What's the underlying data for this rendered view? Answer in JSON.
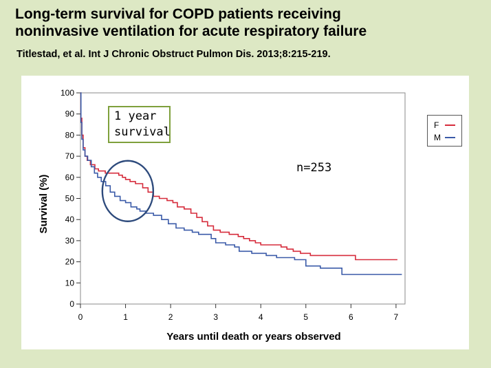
{
  "header": {
    "title_line1": "Long-term survival for COPD patients receiving",
    "title_line2": "noninvasive ventilation for acute respiratory failure",
    "citation": "Titlestad, et al. Int J Chronic Obstruct Pulmon Dis. 2013;8:215-219."
  },
  "chart_data": {
    "type": "line",
    "title": "",
    "xlabel": "Years until death or years observed",
    "ylabel": "Survival (%)",
    "xlim": [
      0,
      7.2
    ],
    "ylim": [
      0,
      100
    ],
    "xticks": [
      0,
      1,
      2,
      3,
      4,
      5,
      6,
      7
    ],
    "yticks": [
      0,
      10,
      20,
      30,
      40,
      50,
      60,
      70,
      80,
      90,
      100
    ],
    "grid": false,
    "legend_position": "top-right",
    "series": [
      {
        "name": "F",
        "color": "#d62b3b",
        "step": true,
        "points": [
          [
            0,
            100
          ],
          [
            0.01,
            88
          ],
          [
            0.03,
            80
          ],
          [
            0.06,
            74
          ],
          [
            0.1,
            70
          ],
          [
            0.15,
            68
          ],
          [
            0.22,
            66
          ],
          [
            0.32,
            64
          ],
          [
            0.4,
            63
          ],
          [
            0.55,
            62
          ],
          [
            0.75,
            62
          ],
          [
            0.85,
            61
          ],
          [
            0.93,
            60
          ],
          [
            1.0,
            59
          ],
          [
            1.1,
            58
          ],
          [
            1.22,
            57
          ],
          [
            1.38,
            55
          ],
          [
            1.5,
            53
          ],
          [
            1.62,
            51
          ],
          [
            1.75,
            50
          ],
          [
            1.92,
            49
          ],
          [
            2.05,
            48
          ],
          [
            2.15,
            46
          ],
          [
            2.3,
            45
          ],
          [
            2.45,
            43
          ],
          [
            2.58,
            41
          ],
          [
            2.7,
            39
          ],
          [
            2.82,
            37
          ],
          [
            2.95,
            35
          ],
          [
            3.1,
            34
          ],
          [
            3.3,
            33
          ],
          [
            3.5,
            32
          ],
          [
            3.62,
            31
          ],
          [
            3.75,
            30
          ],
          [
            3.88,
            29
          ],
          [
            4.0,
            28
          ],
          [
            4.25,
            28
          ],
          [
            4.45,
            27
          ],
          [
            4.58,
            26
          ],
          [
            4.72,
            25
          ],
          [
            4.88,
            24
          ],
          [
            5.1,
            23
          ],
          [
            5.45,
            23
          ],
          [
            6.05,
            23
          ],
          [
            6.1,
            21
          ],
          [
            7.03,
            21
          ]
        ]
      },
      {
        "name": "M",
        "color": "#3a5aa8",
        "step": true,
        "points": [
          [
            0,
            100
          ],
          [
            0.01,
            86
          ],
          [
            0.03,
            78
          ],
          [
            0.06,
            73
          ],
          [
            0.1,
            70
          ],
          [
            0.16,
            68
          ],
          [
            0.24,
            65
          ],
          [
            0.31,
            62
          ],
          [
            0.38,
            60
          ],
          [
            0.46,
            58
          ],
          [
            0.56,
            56
          ],
          [
            0.66,
            53
          ],
          [
            0.76,
            51
          ],
          [
            0.88,
            49
          ],
          [
            1.0,
            48
          ],
          [
            1.12,
            46
          ],
          [
            1.25,
            45
          ],
          [
            1.32,
            44
          ],
          [
            1.45,
            43
          ],
          [
            1.62,
            42
          ],
          [
            1.8,
            40
          ],
          [
            1.95,
            38
          ],
          [
            2.12,
            36
          ],
          [
            2.3,
            35
          ],
          [
            2.48,
            34
          ],
          [
            2.62,
            33
          ],
          [
            2.9,
            31
          ],
          [
            3.0,
            29
          ],
          [
            3.22,
            28
          ],
          [
            3.42,
            27
          ],
          [
            3.52,
            25
          ],
          [
            3.8,
            24
          ],
          [
            4.12,
            23
          ],
          [
            4.35,
            22
          ],
          [
            4.75,
            21
          ],
          [
            5.0,
            18
          ],
          [
            5.32,
            17
          ],
          [
            5.72,
            17
          ],
          [
            5.8,
            14
          ],
          [
            7.13,
            14
          ]
        ]
      }
    ],
    "annotations": {
      "box_line1": "1 year",
      "box_line2": "survival",
      "n_label": "n=253"
    }
  }
}
